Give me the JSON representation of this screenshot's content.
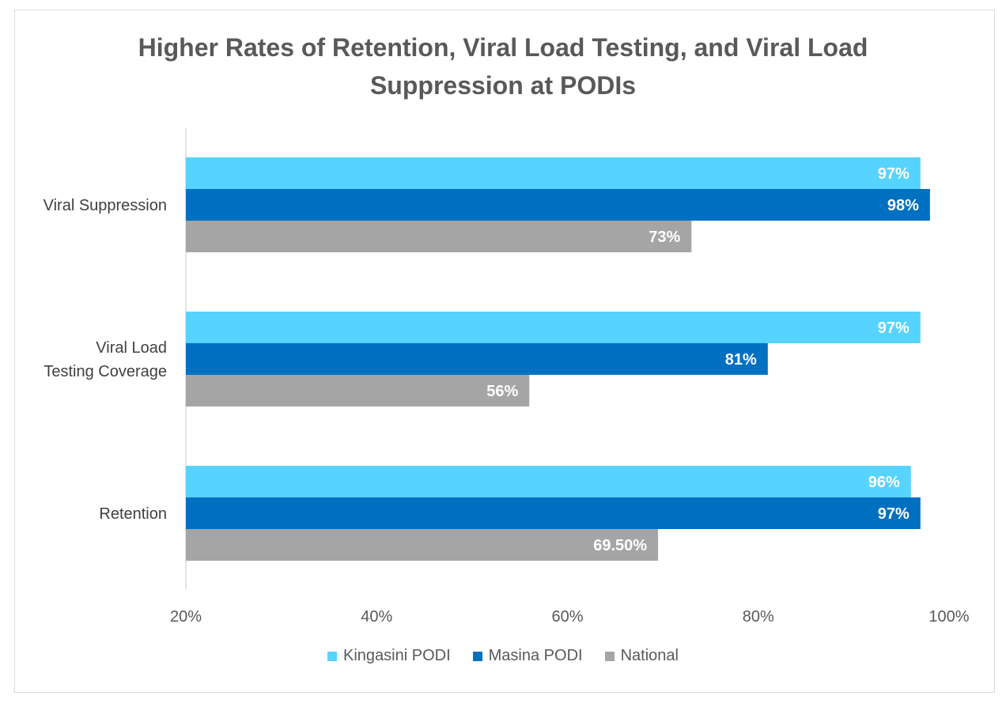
{
  "chart_data": {
    "type": "bar",
    "orientation": "horizontal",
    "title_lines": [
      "Higher Rates of Retention, Viral Load Testing, and Viral Load",
      "Suppression at PODIs"
    ],
    "categories": [
      {
        "label_lines": [
          "Viral Suppression"
        ]
      },
      {
        "label_lines": [
          "Viral Load",
          "Testing Coverage"
        ]
      },
      {
        "label_lines": [
          "Retention"
        ]
      }
    ],
    "series": [
      {
        "name": "Kingasini PODI",
        "color": "#57d3ff",
        "values": [
          97,
          97,
          96
        ],
        "labels": [
          "97%",
          "97%",
          "96%"
        ]
      },
      {
        "name": "Masina PODI",
        "color": "#0070c0",
        "values": [
          98,
          81,
          97
        ],
        "labels": [
          "98%",
          "81%",
          "97%"
        ]
      },
      {
        "name": "National",
        "color": "#a5a5a5",
        "values": [
          73,
          56,
          69.5
        ],
        "labels": [
          "73%",
          "56%",
          "69.50%"
        ]
      }
    ],
    "xlim": [
      20,
      100
    ],
    "xticks": [
      20,
      40,
      60,
      80,
      100
    ],
    "xtick_labels": [
      "20%",
      "40%",
      "60%",
      "80%",
      "100%"
    ],
    "grid": false,
    "legend_position": "bottom"
  }
}
